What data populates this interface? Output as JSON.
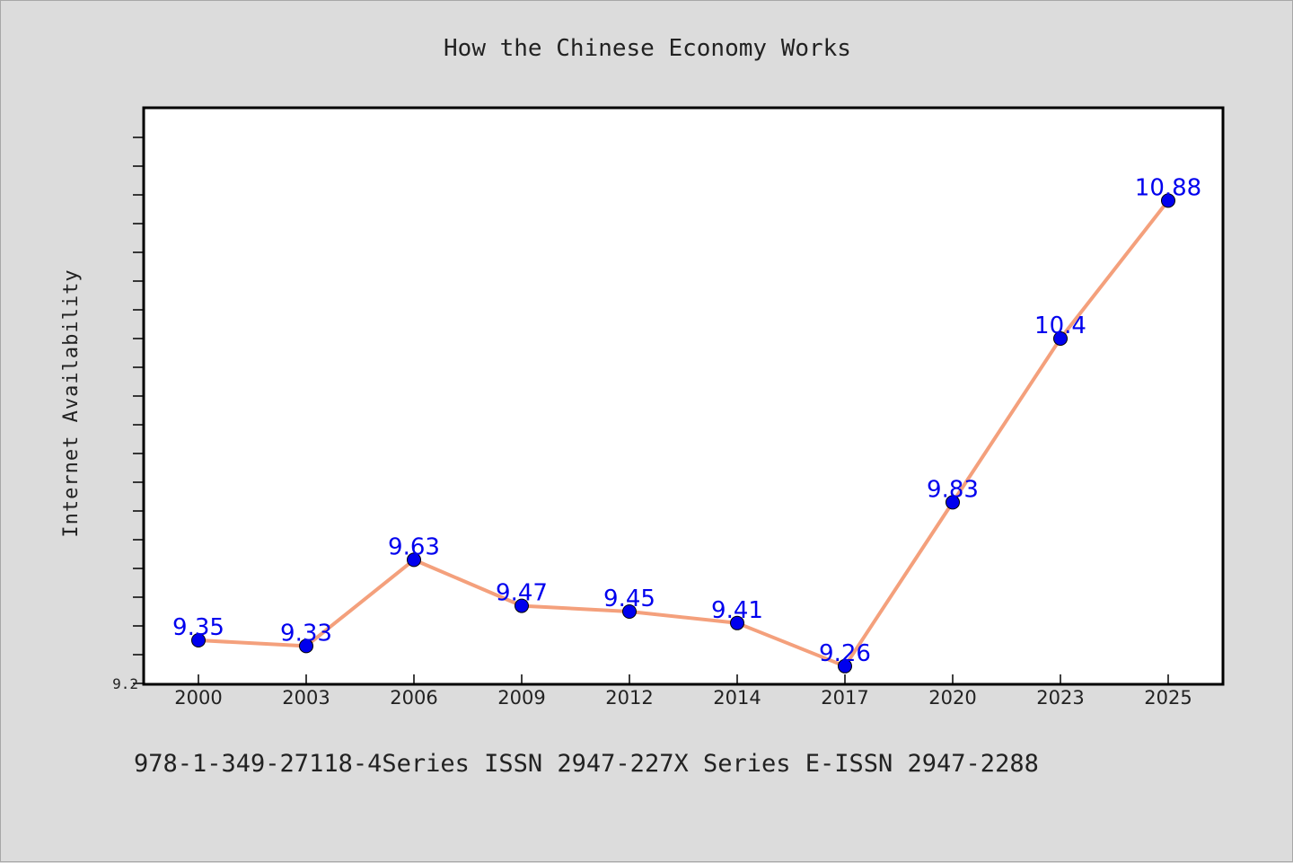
{
  "chart_data": {
    "type": "line",
    "title": "How the Chinese Economy Works",
    "xlabel": "",
    "ylabel": "Internet Availability",
    "categories": [
      "2000",
      "2003",
      "2006",
      "2009",
      "2012",
      "2014",
      "2017",
      "2020",
      "2023",
      "2025"
    ],
    "series": [
      {
        "values": [
          9.35,
          9.33,
          9.63,
          9.47,
          9.45,
          9.41,
          9.26,
          9.83,
          10.4,
          10.88
        ],
        "color": "#f4a07c",
        "marker_color": "#0000ee"
      }
    ],
    "data_labels": [
      "9.35",
      "9.33",
      "9.63",
      "9.47",
      "9.45",
      "9.41",
      "9.26",
      "9.83",
      "10.4",
      "10.88"
    ],
    "ytick_labels": [
      "9.2"
    ],
    "ylim": [
      9.2,
      11.2
    ],
    "grid": false,
    "label_color": "#0000ee"
  },
  "footer": "978-1-349-27118-4Series ISSN 2947-227X Series E-ISSN 2947-2288"
}
